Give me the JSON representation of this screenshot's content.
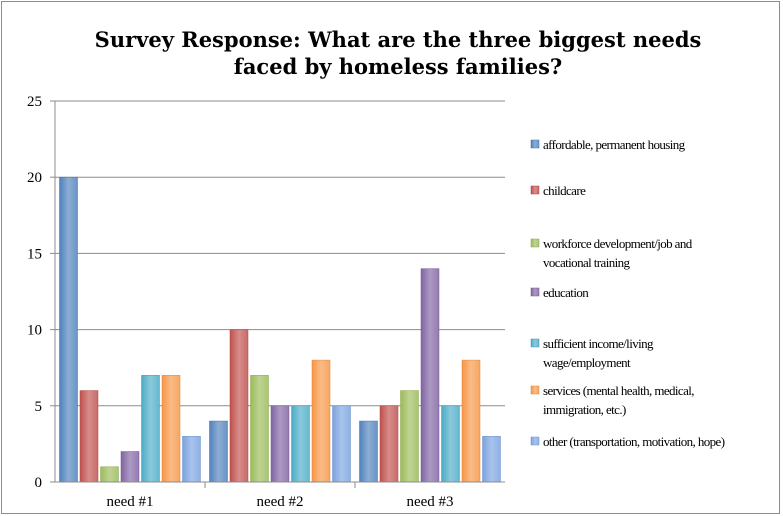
{
  "chart_data": {
    "type": "bar",
    "title_lines": [
      "Survey Response: What are the three biggest needs",
      "faced by homeless families?"
    ],
    "categories": [
      "need #1",
      "need #2",
      "need #3"
    ],
    "ylim": [
      0,
      25
    ],
    "yticks": [
      0,
      5,
      10,
      15,
      20,
      25
    ],
    "grid": true,
    "legend_position": "right",
    "series": [
      {
        "name_lines": [
          "affordable, permanent housing"
        ],
        "color": "#4f81bd",
        "values": [
          20,
          4,
          4
        ]
      },
      {
        "name_lines": [
          "childcare"
        ],
        "color": "#c0504d",
        "values": [
          6,
          10,
          5
        ]
      },
      {
        "name_lines": [
          "workforce development/job and",
          "vocational training"
        ],
        "color": "#9bbb59",
        "values": [
          1,
          7,
          6
        ]
      },
      {
        "name_lines": [
          "education"
        ],
        "color": "#8064a2",
        "values": [
          2,
          5,
          14
        ]
      },
      {
        "name_lines": [
          "sufficient income/living",
          "wage/employment"
        ],
        "color": "#4bacc6",
        "values": [
          7,
          5,
          5
        ]
      },
      {
        "name_lines": [
          "services (mental health, medical,",
          "immigration, etc.)"
        ],
        "color": "#f79646",
        "values": [
          7,
          8,
          8
        ]
      },
      {
        "name_lines": [
          "other (transportation, motivation, hope)"
        ],
        "color": "#7ba3e0",
        "values": [
          3,
          5,
          3
        ]
      }
    ]
  }
}
